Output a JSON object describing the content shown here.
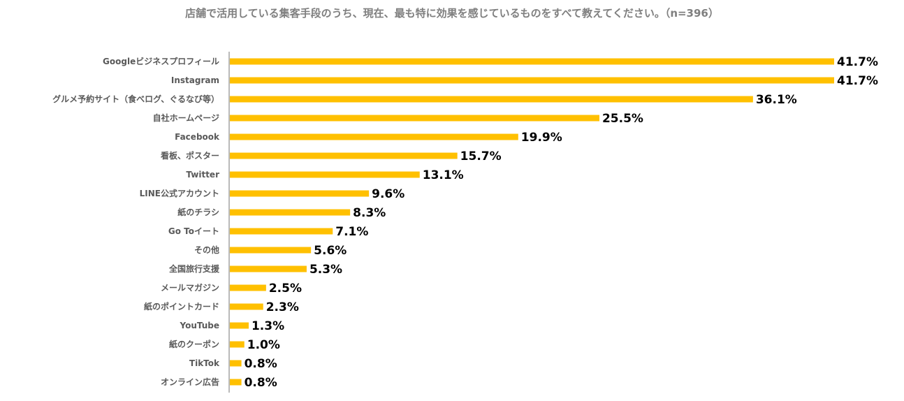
{
  "title": "店舗で活用している集客手段のうち、現在、最も特に効果を感じているものをすべて教えてください。（n=396）",
  "chart_data": {
    "type": "bar",
    "orientation": "horizontal",
    "title": "店舗で活用している集客手段のうち、現在、最も特に効果を感じているものをすべて教えてください。（n=396）",
    "xlabel": "",
    "ylabel": "",
    "xlim": [
      0,
      41.7
    ],
    "grid": false,
    "legend": "none",
    "bar_color": "#FFC000",
    "categories": [
      "Googleビジネスプロフィール",
      "Instagram",
      "グルメ予約サイト（食べログ、ぐるなび等）",
      "自社ホームページ",
      "Facebook",
      "看板、ポスター",
      "Twitter",
      "LINE公式アカウント",
      "紙のチラシ",
      "Go Toイート",
      "その他",
      "全国旅行支援",
      "メールマガジン",
      "紙のポイントカード",
      "YouTube",
      "紙のクーポン",
      "TikTok",
      "オンライン広告"
    ],
    "values": [
      41.7,
      41.7,
      36.1,
      25.5,
      19.9,
      15.7,
      13.1,
      9.6,
      8.3,
      7.1,
      5.6,
      5.3,
      2.5,
      2.3,
      1.3,
      1.0,
      0.8,
      0.8
    ],
    "value_labels": [
      "41.7%",
      "41.7%",
      "36.1%",
      "25.5%",
      "19.9%",
      "15.7%",
      "13.1%",
      "9.6%",
      "8.3%",
      "7.1%",
      "5.6%",
      "5.3%",
      "2.5%",
      "2.3%",
      "1.3%",
      "1.0%",
      "0.8%",
      "0.8%"
    ]
  }
}
